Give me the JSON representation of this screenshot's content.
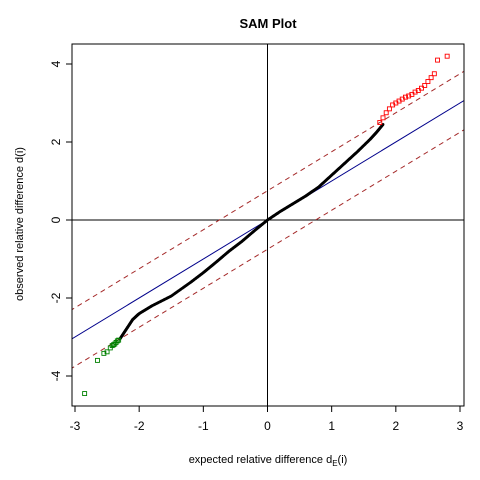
{
  "chart_data": {
    "type": "scatter",
    "title": "SAM Plot",
    "xlabel": "expected relative difference d",
    "xlabel_subscript": "E",
    "xlabel_suffix": "(i)",
    "ylabel": "observed relative difference d(i)",
    "xlim": [
      -3.0,
      3.0
    ],
    "ylim": [
      -4.8,
      4.8
    ],
    "x_ticks": [
      -3,
      -2,
      -1,
      0,
      1,
      2,
      3
    ],
    "y_ticks": [
      -4,
      -2,
      0,
      2,
      4
    ],
    "grid": false,
    "legend": "none",
    "reference_lines": {
      "identity": {
        "slope": 1.0,
        "intercept": 0.0,
        "color": "#00008b",
        "style": "solid"
      },
      "upper_delta": {
        "slope": 1.0,
        "intercept": 0.75,
        "color": "#a52a2a",
        "style": "dashed"
      },
      "lower_delta": {
        "slope": 1.0,
        "intercept": -0.75,
        "color": "#a52a2a",
        "style": "dashed"
      },
      "zero_axes": {
        "color": "#000000",
        "style": "solid"
      }
    },
    "series": [
      {
        "role": "non-significant",
        "color": "#000000",
        "marker": "dot",
        "x": [
          -2.3,
          -2.2,
          -2.1,
          -2.0,
          -1.8,
          -1.5,
          -1.2,
          -1.0,
          -0.8,
          -0.6,
          -0.4,
          -0.2,
          0.0,
          0.2,
          0.4,
          0.6,
          0.8,
          1.0,
          1.2,
          1.4,
          1.6,
          1.7,
          1.8
        ],
        "y": [
          -3.05,
          -2.8,
          -2.55,
          -2.4,
          -2.2,
          -1.95,
          -1.6,
          -1.35,
          -1.08,
          -0.8,
          -0.55,
          -0.27,
          0.0,
          0.22,
          0.42,
          0.62,
          0.85,
          1.15,
          1.45,
          1.75,
          2.07,
          2.25,
          2.45
        ]
      },
      {
        "role": "significant-positive",
        "color": "#ff0000",
        "marker": "open-square",
        "x": [
          1.75,
          1.8,
          1.85,
          1.9,
          1.95,
          2.0,
          2.05,
          2.1,
          2.15,
          2.2,
          2.25,
          2.3,
          2.35,
          2.4,
          2.45,
          2.5,
          2.55,
          2.6,
          2.65,
          2.8
        ],
        "y": [
          2.5,
          2.62,
          2.75,
          2.85,
          2.95,
          3.0,
          3.05,
          3.1,
          3.15,
          3.18,
          3.22,
          3.28,
          3.32,
          3.38,
          3.45,
          3.55,
          3.65,
          3.75,
          4.1,
          4.2
        ]
      },
      {
        "role": "significant-negative",
        "color": "#008000",
        "marker": "open-square",
        "x": [
          -2.85,
          -2.65,
          -2.55,
          -2.5,
          -2.45,
          -2.42,
          -2.4,
          -2.38,
          -2.36,
          -2.34,
          -2.32
        ],
        "y": [
          -4.45,
          -3.6,
          -3.42,
          -3.38,
          -3.28,
          -3.22,
          -3.2,
          -3.18,
          -3.14,
          -3.1,
          -3.08
        ]
      }
    ]
  }
}
